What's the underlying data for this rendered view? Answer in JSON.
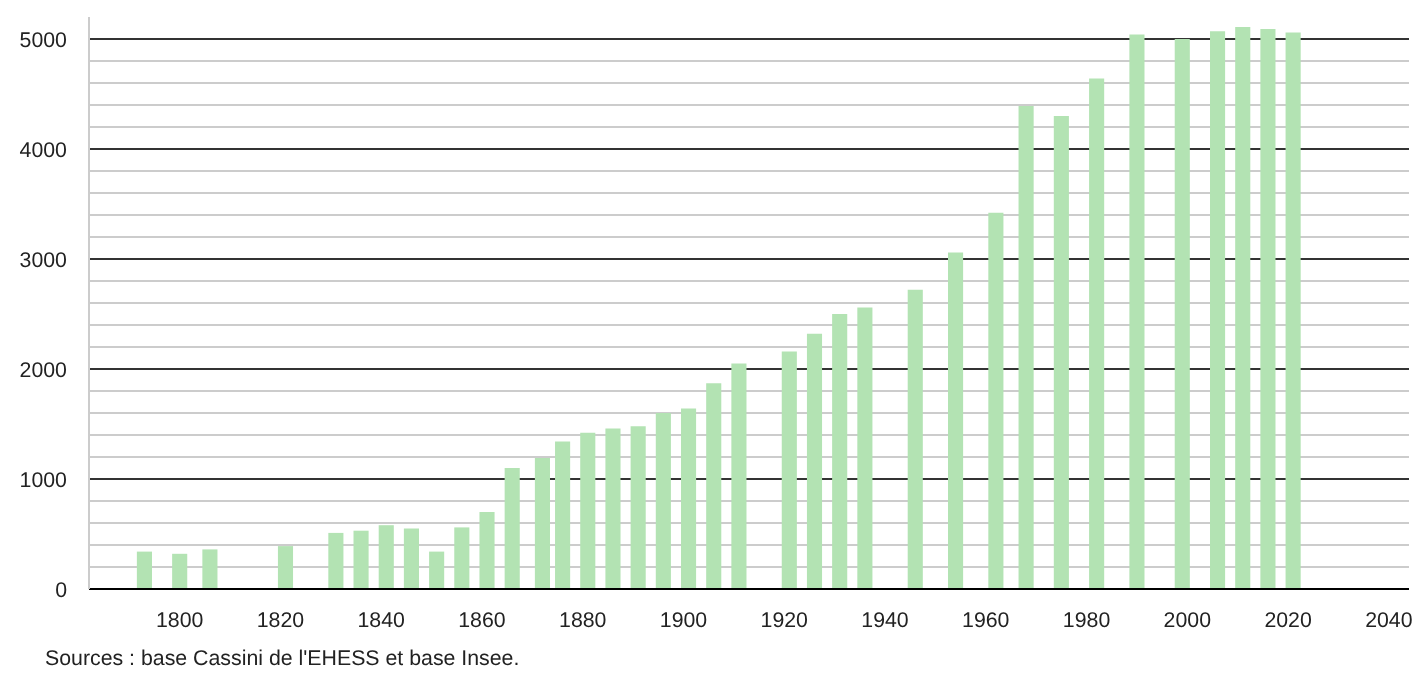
{
  "chart_data": {
    "type": "bar",
    "x": [
      1793,
      1800,
      1806,
      1821,
      1831,
      1836,
      1841,
      1846,
      1851,
      1856,
      1861,
      1866,
      1872,
      1876,
      1881,
      1886,
      1891,
      1896,
      1901,
      1906,
      1911,
      1921,
      1926,
      1931,
      1936,
      1946,
      1954,
      1962,
      1968,
      1975,
      1982,
      1990,
      1999,
      2006,
      2011,
      2016,
      2021
    ],
    "values": [
      340,
      320,
      360,
      390,
      510,
      530,
      580,
      550,
      340,
      560,
      700,
      1100,
      1190,
      1340,
      1420,
      1460,
      1480,
      1600,
      1640,
      1870,
      2050,
      2160,
      2320,
      2500,
      2560,
      2720,
      3060,
      3420,
      4390,
      4300,
      4640,
      5040,
      5000,
      5070,
      5110,
      5090,
      5060
    ],
    "color": "#b3e3b3",
    "xlim": [
      1782,
      2044
    ],
    "ylim": [
      0,
      5200
    ],
    "xticks": [
      1800,
      1820,
      1840,
      1860,
      1880,
      1900,
      1920,
      1940,
      1960,
      1980,
      2000,
      2020,
      2040
    ],
    "yticks": [
      0,
      1000,
      2000,
      3000,
      4000,
      5000
    ],
    "grid": "y",
    "annotations": [
      "Sources : base Cassini de l'EHESS et base Insee."
    ]
  }
}
